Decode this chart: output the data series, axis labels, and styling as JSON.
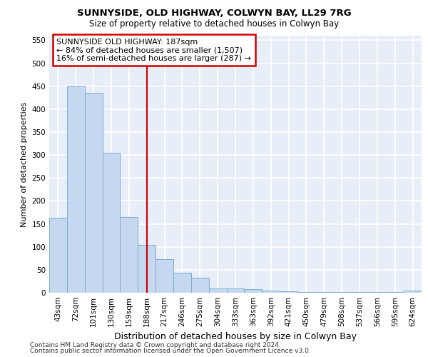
{
  "title": "SUNNYSIDE, OLD HIGHWAY, COLWYN BAY, LL29 7RG",
  "subtitle": "Size of property relative to detached houses in Colwyn Bay",
  "xlabel": "Distribution of detached houses by size in Colwyn Bay",
  "ylabel": "Number of detached properties",
  "categories": [
    "43sqm",
    "72sqm",
    "101sqm",
    "130sqm",
    "159sqm",
    "188sqm",
    "217sqm",
    "246sqm",
    "275sqm",
    "304sqm",
    "333sqm",
    "363sqm",
    "392sqm",
    "421sqm",
    "450sqm",
    "479sqm",
    "508sqm",
    "537sqm",
    "566sqm",
    "595sqm",
    "624sqm"
  ],
  "values": [
    163,
    450,
    435,
    305,
    165,
    105,
    73,
    43,
    33,
    10,
    10,
    8,
    5,
    3,
    2,
    2,
    2,
    2,
    2,
    2,
    4
  ],
  "bar_color": "#c5d8ef",
  "bar_edge_color": "#7aadd4",
  "highlight_bar_index": 5,
  "highlight_line_color": "#cc0000",
  "highlight_box_text_line1": "SUNNYSIDE OLD HIGHWAY: 187sqm",
  "highlight_box_text_line2": "← 84% of detached houses are smaller (1,507)",
  "highlight_box_text_line3": "16% of semi-detached houses are larger (287) →",
  "highlight_box_color": "#cc0000",
  "ylim": [
    0,
    560
  ],
  "yticks": [
    0,
    50,
    100,
    150,
    200,
    250,
    300,
    350,
    400,
    450,
    500,
    550
  ],
  "background_color": "#e8eef8",
  "grid_color": "#ffffff",
  "footer_line1": "Contains HM Land Registry data © Crown copyright and database right 2024.",
  "footer_line2": "Contains public sector information licensed under the Open Government Licence v3.0.",
  "title_fontsize": 9.5,
  "subtitle_fontsize": 8.5,
  "xlabel_fontsize": 9,
  "ylabel_fontsize": 8,
  "tick_fontsize": 7.5,
  "annotation_fontsize": 8,
  "footer_fontsize": 6.5
}
